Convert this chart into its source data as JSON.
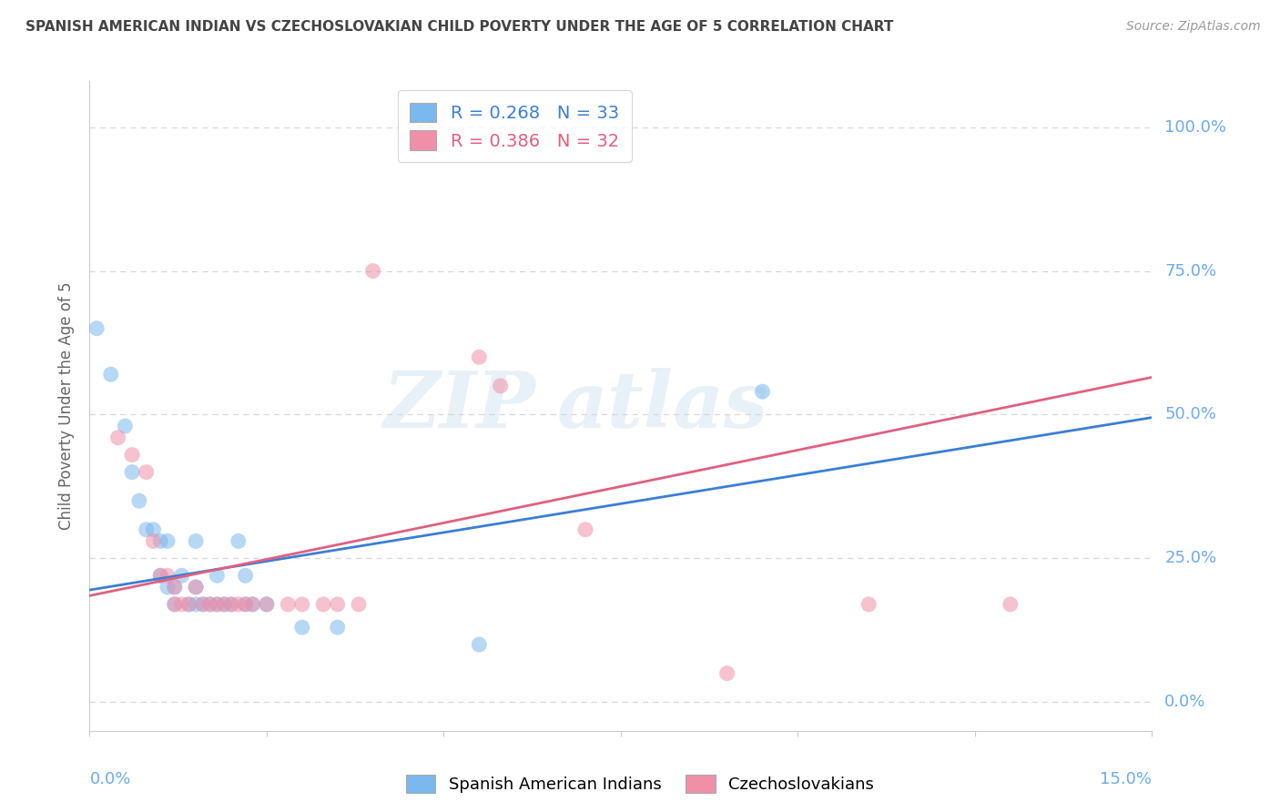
{
  "title": "SPANISH AMERICAN INDIAN VS CZECHOSLOVAKIAN CHILD POVERTY UNDER THE AGE OF 5 CORRELATION CHART",
  "source": "Source: ZipAtlas.com",
  "ylabel": "Child Poverty Under the Age of 5",
  "ytick_labels": [
    "0.0%",
    "25.0%",
    "50.0%",
    "75.0%",
    "100.0%"
  ],
  "ytick_values": [
    0.0,
    0.25,
    0.5,
    0.75,
    1.0
  ],
  "xlim": [
    0.0,
    0.15
  ],
  "ylim": [
    -0.05,
    1.08
  ],
  "r1": 0.268,
  "r2": 0.386,
  "n1": 33,
  "n2": 32,
  "color_blue": "#7ab8ee",
  "color_pink": "#f090a8",
  "color_line_blue": "#3a7fd5",
  "color_line_pink": "#e06080",
  "color_title": "#444444",
  "color_source": "#999999",
  "color_ylabel": "#666666",
  "color_tick_right": "#6aabf0",
  "color_tick_bottom": "#6aabf0",
  "grid_color": "#d8d8d8",
  "bg_color": "#ffffff",
  "scatter_blue": [
    [
      0.001,
      0.65
    ],
    [
      0.003,
      0.57
    ],
    [
      0.005,
      0.48
    ],
    [
      0.006,
      0.4
    ],
    [
      0.007,
      0.35
    ],
    [
      0.008,
      0.3
    ],
    [
      0.009,
      0.3
    ],
    [
      0.01,
      0.28
    ],
    [
      0.01,
      0.22
    ],
    [
      0.011,
      0.28
    ],
    [
      0.011,
      0.2
    ],
    [
      0.012,
      0.2
    ],
    [
      0.012,
      0.17
    ],
    [
      0.013,
      0.22
    ],
    [
      0.014,
      0.17
    ],
    [
      0.015,
      0.28
    ],
    [
      0.015,
      0.2
    ],
    [
      0.015,
      0.17
    ],
    [
      0.016,
      0.17
    ],
    [
      0.017,
      0.17
    ],
    [
      0.018,
      0.22
    ],
    [
      0.018,
      0.17
    ],
    [
      0.019,
      0.17
    ],
    [
      0.02,
      0.17
    ],
    [
      0.021,
      0.28
    ],
    [
      0.022,
      0.22
    ],
    [
      0.022,
      0.17
    ],
    [
      0.023,
      0.17
    ],
    [
      0.025,
      0.17
    ],
    [
      0.03,
      0.13
    ],
    [
      0.035,
      0.13
    ],
    [
      0.055,
      0.1
    ],
    [
      0.095,
      0.54
    ]
  ],
  "scatter_pink": [
    [
      0.004,
      0.46
    ],
    [
      0.006,
      0.43
    ],
    [
      0.008,
      0.4
    ],
    [
      0.009,
      0.28
    ],
    [
      0.01,
      0.22
    ],
    [
      0.011,
      0.22
    ],
    [
      0.012,
      0.2
    ],
    [
      0.012,
      0.17
    ],
    [
      0.013,
      0.17
    ],
    [
      0.014,
      0.17
    ],
    [
      0.015,
      0.2
    ],
    [
      0.016,
      0.17
    ],
    [
      0.017,
      0.17
    ],
    [
      0.018,
      0.17
    ],
    [
      0.019,
      0.17
    ],
    [
      0.02,
      0.17
    ],
    [
      0.021,
      0.17
    ],
    [
      0.022,
      0.17
    ],
    [
      0.023,
      0.17
    ],
    [
      0.025,
      0.17
    ],
    [
      0.028,
      0.17
    ],
    [
      0.03,
      0.17
    ],
    [
      0.033,
      0.17
    ],
    [
      0.035,
      0.17
    ],
    [
      0.038,
      0.17
    ],
    [
      0.04,
      0.75
    ],
    [
      0.055,
      0.6
    ],
    [
      0.058,
      0.55
    ],
    [
      0.07,
      0.3
    ],
    [
      0.09,
      0.05
    ],
    [
      0.11,
      0.17
    ],
    [
      0.13,
      0.17
    ]
  ],
  "line_blue": [
    [
      0.0,
      0.195
    ],
    [
      0.15,
      0.495
    ]
  ],
  "line_pink": [
    [
      0.0,
      0.185
    ],
    [
      0.15,
      0.565
    ]
  ],
  "watermark_top": "ZIP",
  "watermark_bot": "atlas",
  "xtick_positions": [
    0.0,
    0.025,
    0.05,
    0.075,
    0.1,
    0.125,
    0.15
  ]
}
